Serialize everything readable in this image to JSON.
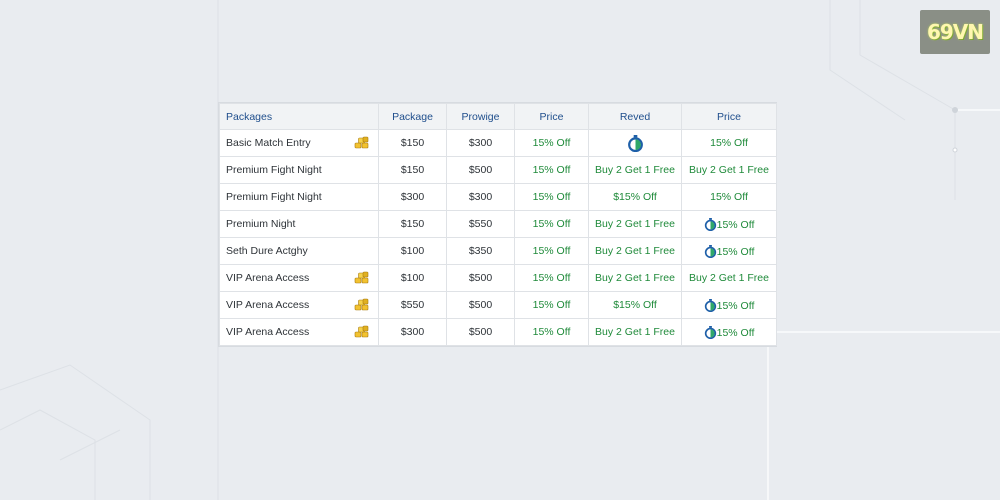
{
  "brand": {
    "logo_text": "69VN"
  },
  "table": {
    "headers": [
      "Packages",
      "Package",
      "Prowige",
      "Price",
      "Reved",
      "Price"
    ],
    "rows": [
      {
        "name": "Basic Match Entry",
        "coin": true,
        "package": "$150",
        "prowige": "$300",
        "price": "15% Off",
        "reved": "",
        "reved_icon": true,
        "price2": "15% Off",
        "price2_icon": false
      },
      {
        "name": "Premium Fight Night",
        "coin": false,
        "package": "$150",
        "prowige": "$500",
        "price": "15% Off",
        "reved": "Buy 2 Get 1 Free",
        "reved_icon": false,
        "price2": "Buy 2 Get 1 Free",
        "price2_icon": false
      },
      {
        "name": "Premium Fight Night",
        "coin": false,
        "package": "$300",
        "prowige": "$300",
        "price": "15% Off",
        "reved": "$15% Off",
        "reved_icon": false,
        "price2": "15% Off",
        "price2_icon": false
      },
      {
        "name": "Premium Night",
        "coin": false,
        "package": "$150",
        "prowige": "$550",
        "price": "15% Off",
        "reved": "Buy 2 Get 1 Free",
        "reved_icon": false,
        "price2": "15% Off",
        "price2_icon": true
      },
      {
        "name": "Seth Dure Actghy",
        "coin": false,
        "package": "$100",
        "prowige": "$350",
        "price": "15% Off",
        "reved": "Buy 2 Get 1 Free",
        "reved_icon": false,
        "price2": "15% Off",
        "price2_icon": true
      },
      {
        "name": "VIP Arena Access",
        "coin": true,
        "package": "$100",
        "prowige": "$500",
        "price": "15% Off",
        "reved": "Buy 2 Get 1 Free",
        "reved_icon": false,
        "price2": "Buy 2 Get 1 Free",
        "price2_icon": false
      },
      {
        "name": "VIP Arena Access",
        "coin": true,
        "package": "$550",
        "prowige": "$500",
        "price": "15% Off",
        "reved": "$15% Off",
        "reved_icon": false,
        "price2": "15% Off",
        "price2_icon": true
      },
      {
        "name": "VIP Arena Access",
        "coin": true,
        "package": "$300",
        "prowige": "$500",
        "price": "15% Off",
        "reved": "Buy 2 Get 1 Free",
        "reved_icon": false,
        "price2": "15% Off",
        "price2_icon": true
      }
    ]
  },
  "icons": {
    "coin": "gold-coins-icon",
    "timer": "timer-icon"
  },
  "colors": {
    "header_text": "#1f4e8c",
    "offer_text": "#1f8a3a",
    "coin": "#e0b020",
    "timer": "#1e5fa8"
  }
}
